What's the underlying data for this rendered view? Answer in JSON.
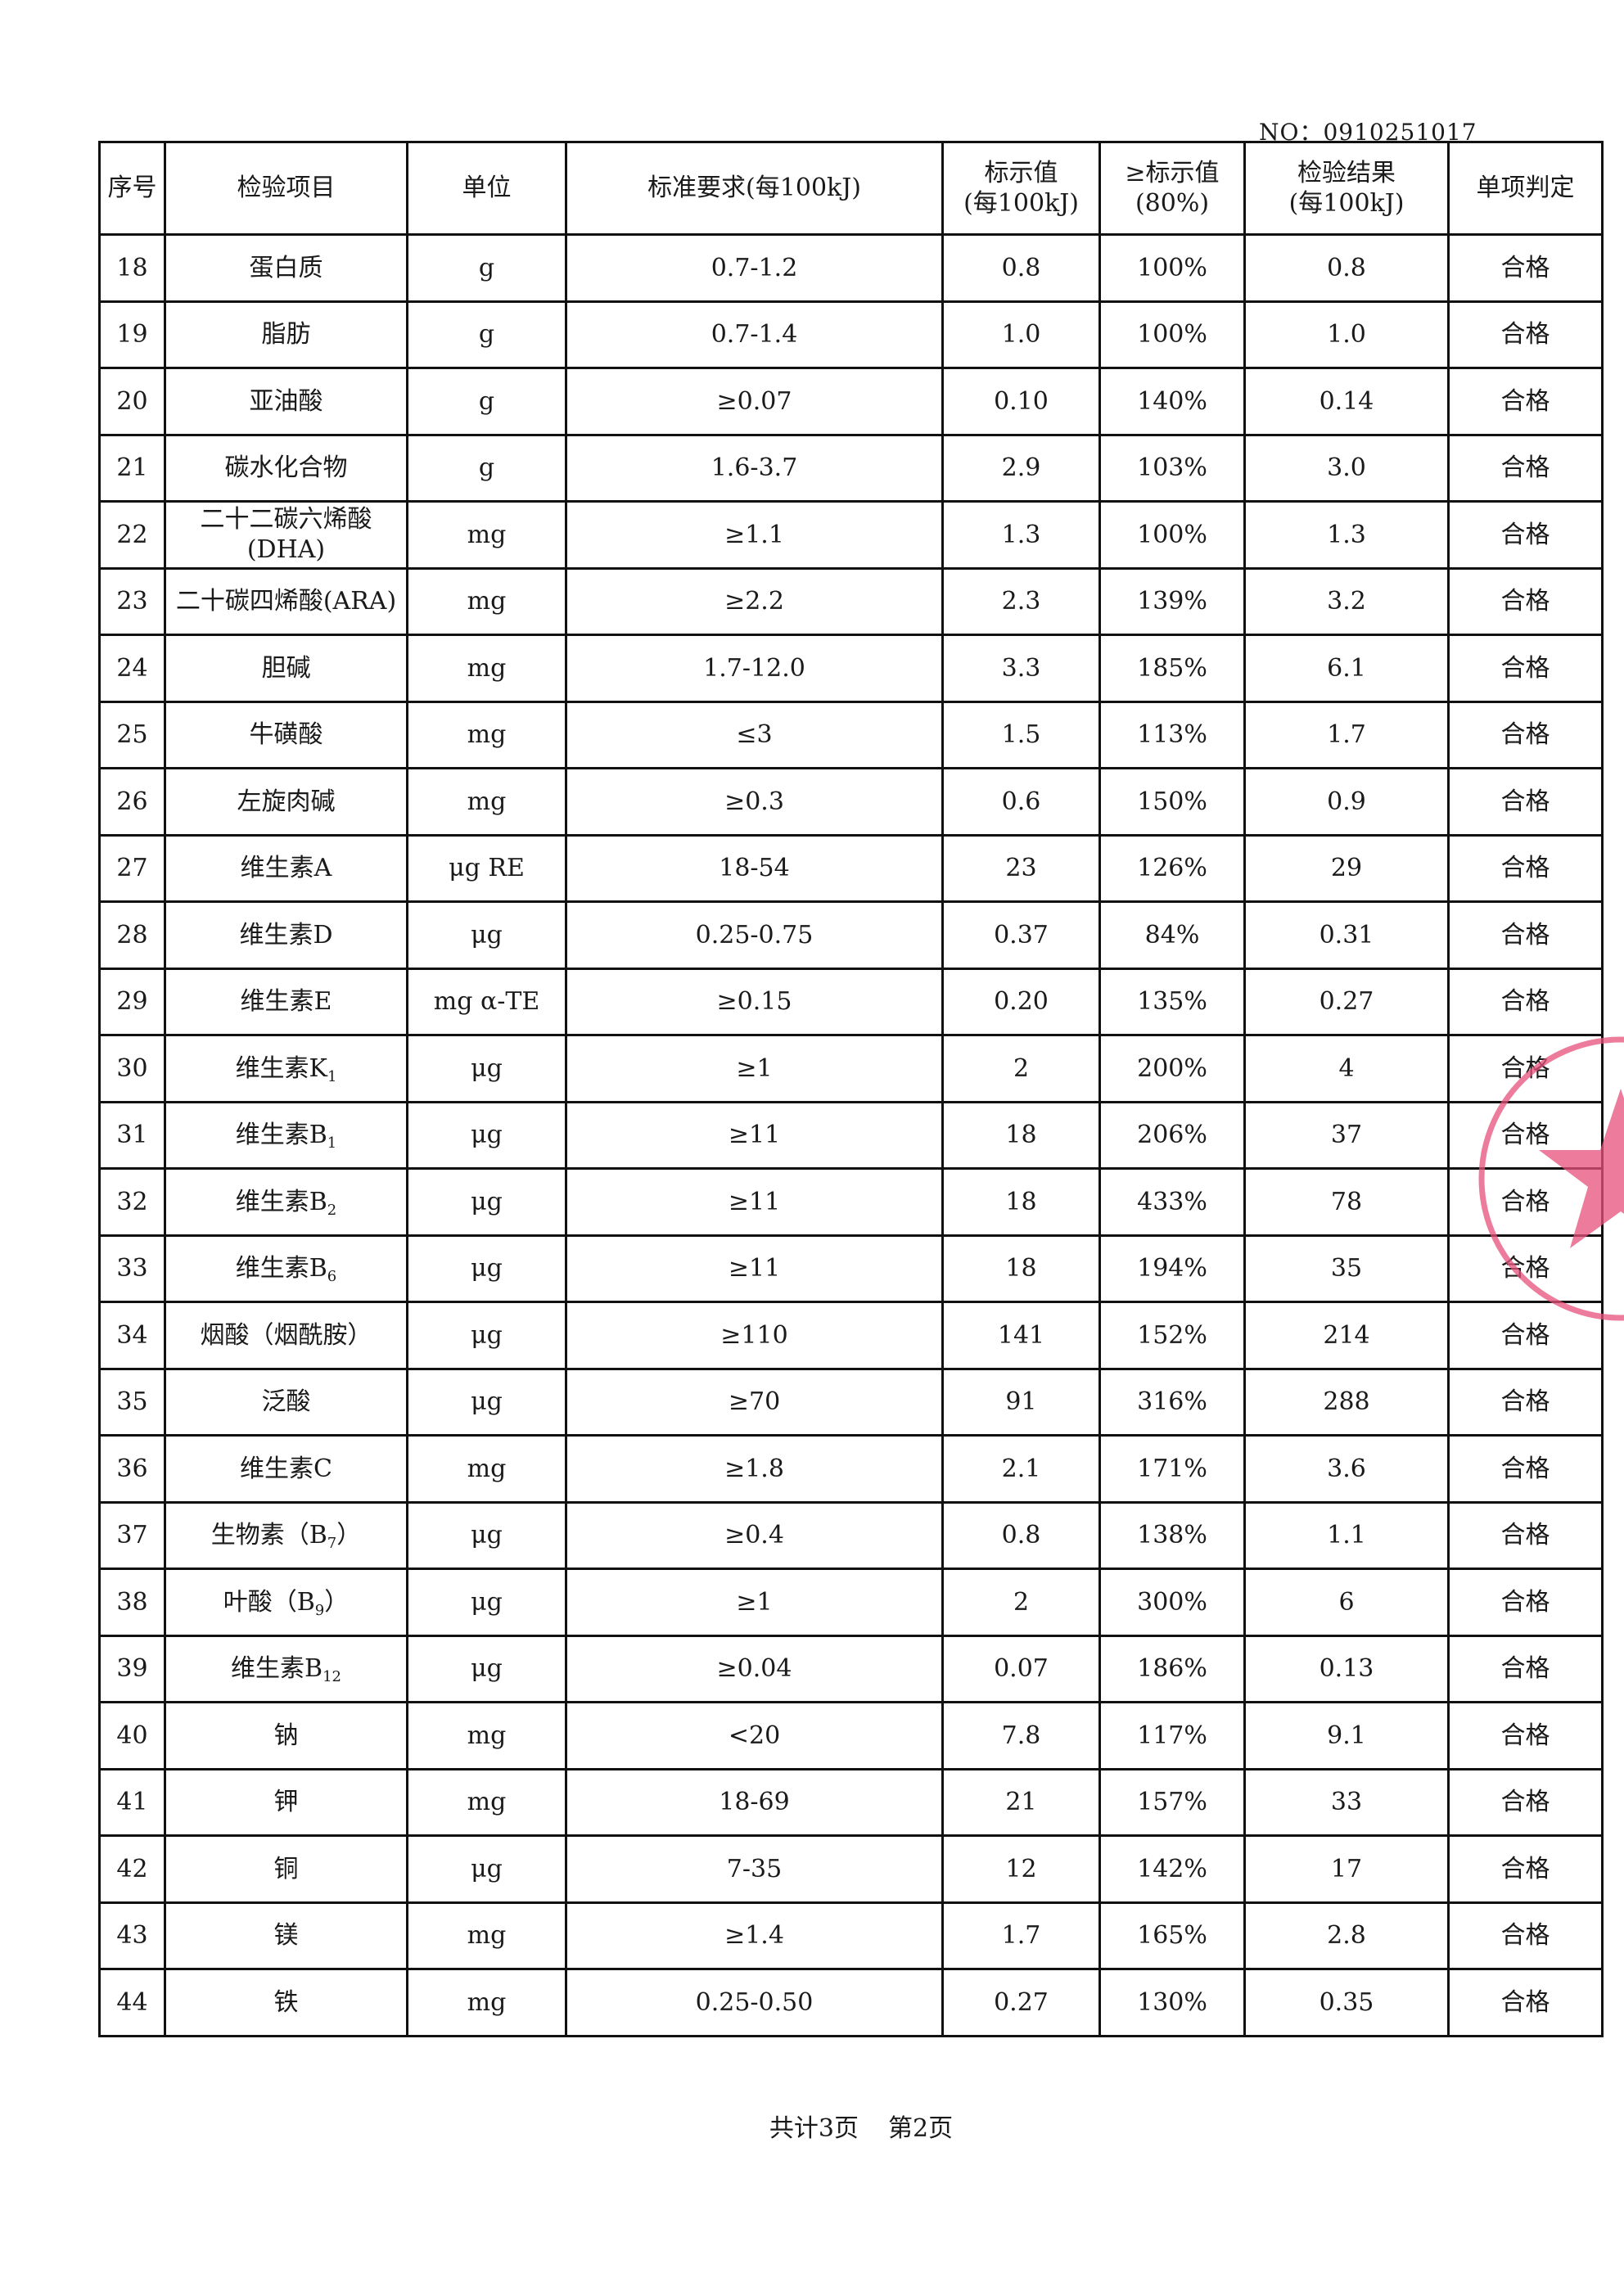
{
  "doc_no": "NO：0910251017",
  "headers": {
    "seq": "序号",
    "item": "检验项目",
    "unit": "单位",
    "standard": "标准要求(每100kJ)",
    "label_value_1": "标示值",
    "label_value_2": "(每100kJ)",
    "ratio_1": "≥标示值",
    "ratio_2": "(80%)",
    "result_1": "检验结果",
    "result_2": "(每100kJ)",
    "verdict": "单项判定"
  },
  "rows": [
    {
      "seq": "18",
      "name": "蛋白质",
      "sub": "",
      "suffix": "",
      "unit": "g",
      "standard": "0.7-1.2",
      "label": "0.8",
      "ratio": "100%",
      "result": "0.8",
      "verdict": "合格"
    },
    {
      "seq": "19",
      "name": "脂肪",
      "sub": "",
      "suffix": "",
      "unit": "g",
      "standard": "0.7-1.4",
      "label": "1.0",
      "ratio": "100%",
      "result": "1.0",
      "verdict": "合格"
    },
    {
      "seq": "20",
      "name": "亚油酸",
      "sub": "",
      "suffix": "",
      "unit": "g",
      "standard": "≥0.07",
      "label": "0.10",
      "ratio": "140%",
      "result": "0.14",
      "verdict": "合格"
    },
    {
      "seq": "21",
      "name": "碳水化合物",
      "sub": "",
      "suffix": "",
      "unit": "g",
      "standard": "1.6-3.7",
      "label": "2.9",
      "ratio": "103%",
      "result": "3.0",
      "verdict": "合格"
    },
    {
      "seq": "22",
      "name": "二十二碳六烯酸",
      "sub": "",
      "suffix": "(DHA)",
      "unit": "mg",
      "standard": "≥1.1",
      "label": "1.3",
      "ratio": "100%",
      "result": "1.3",
      "verdict": "合格"
    },
    {
      "seq": "23",
      "name": "二十碳四烯酸(ARA)",
      "sub": "",
      "suffix": "",
      "unit": "mg",
      "standard": "≥2.2",
      "label": "2.3",
      "ratio": "139%",
      "result": "3.2",
      "verdict": "合格"
    },
    {
      "seq": "24",
      "name": "胆碱",
      "sub": "",
      "suffix": "",
      "unit": "mg",
      "standard": "1.7-12.0",
      "label": "3.3",
      "ratio": "185%",
      "result": "6.1",
      "verdict": "合格"
    },
    {
      "seq": "25",
      "name": "牛磺酸",
      "sub": "",
      "suffix": "",
      "unit": "mg",
      "standard": "≤3",
      "label": "1.5",
      "ratio": "113%",
      "result": "1.7",
      "verdict": "合格"
    },
    {
      "seq": "26",
      "name": "左旋肉碱",
      "sub": "",
      "suffix": "",
      "unit": "mg",
      "standard": "≥0.3",
      "label": "0.6",
      "ratio": "150%",
      "result": "0.9",
      "verdict": "合格"
    },
    {
      "seq": "27",
      "name": "维生素A",
      "sub": "",
      "suffix": "",
      "unit": "μg RE",
      "standard": "18-54",
      "label": "23",
      "ratio": "126%",
      "result": "29",
      "verdict": "合格"
    },
    {
      "seq": "28",
      "name": "维生素D",
      "sub": "",
      "suffix": "",
      "unit": "μg",
      "standard": "0.25-0.75",
      "label": "0.37",
      "ratio": "84%",
      "result": "0.31",
      "verdict": "合格"
    },
    {
      "seq": "29",
      "name": "维生素E",
      "sub": "",
      "suffix": "",
      "unit": "mg α-TE",
      "standard": "≥0.15",
      "label": "0.20",
      "ratio": "135%",
      "result": "0.27",
      "verdict": "合格"
    },
    {
      "seq": "30",
      "name": "维生素K",
      "sub": "1",
      "suffix": "",
      "unit": "μg",
      "standard": "≥1",
      "label": "2",
      "ratio": "200%",
      "result": "4",
      "verdict": "合格"
    },
    {
      "seq": "31",
      "name": "维生素B",
      "sub": "1",
      "suffix": "",
      "unit": "μg",
      "standard": "≥11",
      "label": "18",
      "ratio": "206%",
      "result": "37",
      "verdict": "合格"
    },
    {
      "seq": "32",
      "name": "维生素B",
      "sub": "2",
      "suffix": "",
      "unit": "μg",
      "standard": "≥11",
      "label": "18",
      "ratio": "433%",
      "result": "78",
      "verdict": "合格"
    },
    {
      "seq": "33",
      "name": "维生素B",
      "sub": "6",
      "suffix": "",
      "unit": "μg",
      "standard": "≥11",
      "label": "18",
      "ratio": "194%",
      "result": "35",
      "verdict": "合格"
    },
    {
      "seq": "34",
      "name": "烟酸（烟酰胺）",
      "sub": "",
      "suffix": "",
      "unit": "μg",
      "standard": "≥110",
      "label": "141",
      "ratio": "152%",
      "result": "214",
      "verdict": "合格"
    },
    {
      "seq": "35",
      "name": "泛酸",
      "sub": "",
      "suffix": "",
      "unit": "μg",
      "standard": "≥70",
      "label": "91",
      "ratio": "316%",
      "result": "288",
      "verdict": "合格"
    },
    {
      "seq": "36",
      "name": "维生素C",
      "sub": "",
      "suffix": "",
      "unit": "mg",
      "standard": "≥1.8",
      "label": "2.1",
      "ratio": "171%",
      "result": "3.6",
      "verdict": "合格"
    },
    {
      "seq": "37",
      "name": "生物素（B",
      "sub": "7",
      "suffix": "）",
      "unit": "μg",
      "standard": "≥0.4",
      "label": "0.8",
      "ratio": "138%",
      "result": "1.1",
      "verdict": "合格"
    },
    {
      "seq": "38",
      "name": "叶酸（B",
      "sub": "9",
      "suffix": "）",
      "unit": "μg",
      "standard": "≥1",
      "label": "2",
      "ratio": "300%",
      "result": "6",
      "verdict": "合格"
    },
    {
      "seq": "39",
      "name": "维生素B",
      "sub": "12",
      "suffix": "",
      "unit": "μg",
      "standard": "≥0.04",
      "label": "0.07",
      "ratio": "186%",
      "result": "0.13",
      "verdict": "合格"
    },
    {
      "seq": "40",
      "name": "钠",
      "sub": "",
      "suffix": "",
      "unit": "mg",
      "standard": "<20",
      "label": "7.8",
      "ratio": "117%",
      "result": "9.1",
      "verdict": "合格"
    },
    {
      "seq": "41",
      "name": "钾",
      "sub": "",
      "suffix": "",
      "unit": "mg",
      "standard": "18-69",
      "label": "21",
      "ratio": "157%",
      "result": "33",
      "verdict": "合格"
    },
    {
      "seq": "42",
      "name": "铜",
      "sub": "",
      "suffix": "",
      "unit": "μg",
      "standard": "7-35",
      "label": "12",
      "ratio": "142%",
      "result": "17",
      "verdict": "合格"
    },
    {
      "seq": "43",
      "name": "镁",
      "sub": "",
      "suffix": "",
      "unit": "mg",
      "standard": "≥1.4",
      "label": "1.7",
      "ratio": "165%",
      "result": "2.8",
      "verdict": "合格"
    },
    {
      "seq": "44",
      "name": "铁",
      "sub": "",
      "suffix": "",
      "unit": "mg",
      "standard": "0.25-0.50",
      "label": "0.27",
      "ratio": "130%",
      "result": "0.35",
      "verdict": "合格"
    }
  ],
  "footer": {
    "total_pages": "共计3页",
    "current_page": "第2页"
  },
  "stamp": {
    "color": "#e8507a"
  }
}
